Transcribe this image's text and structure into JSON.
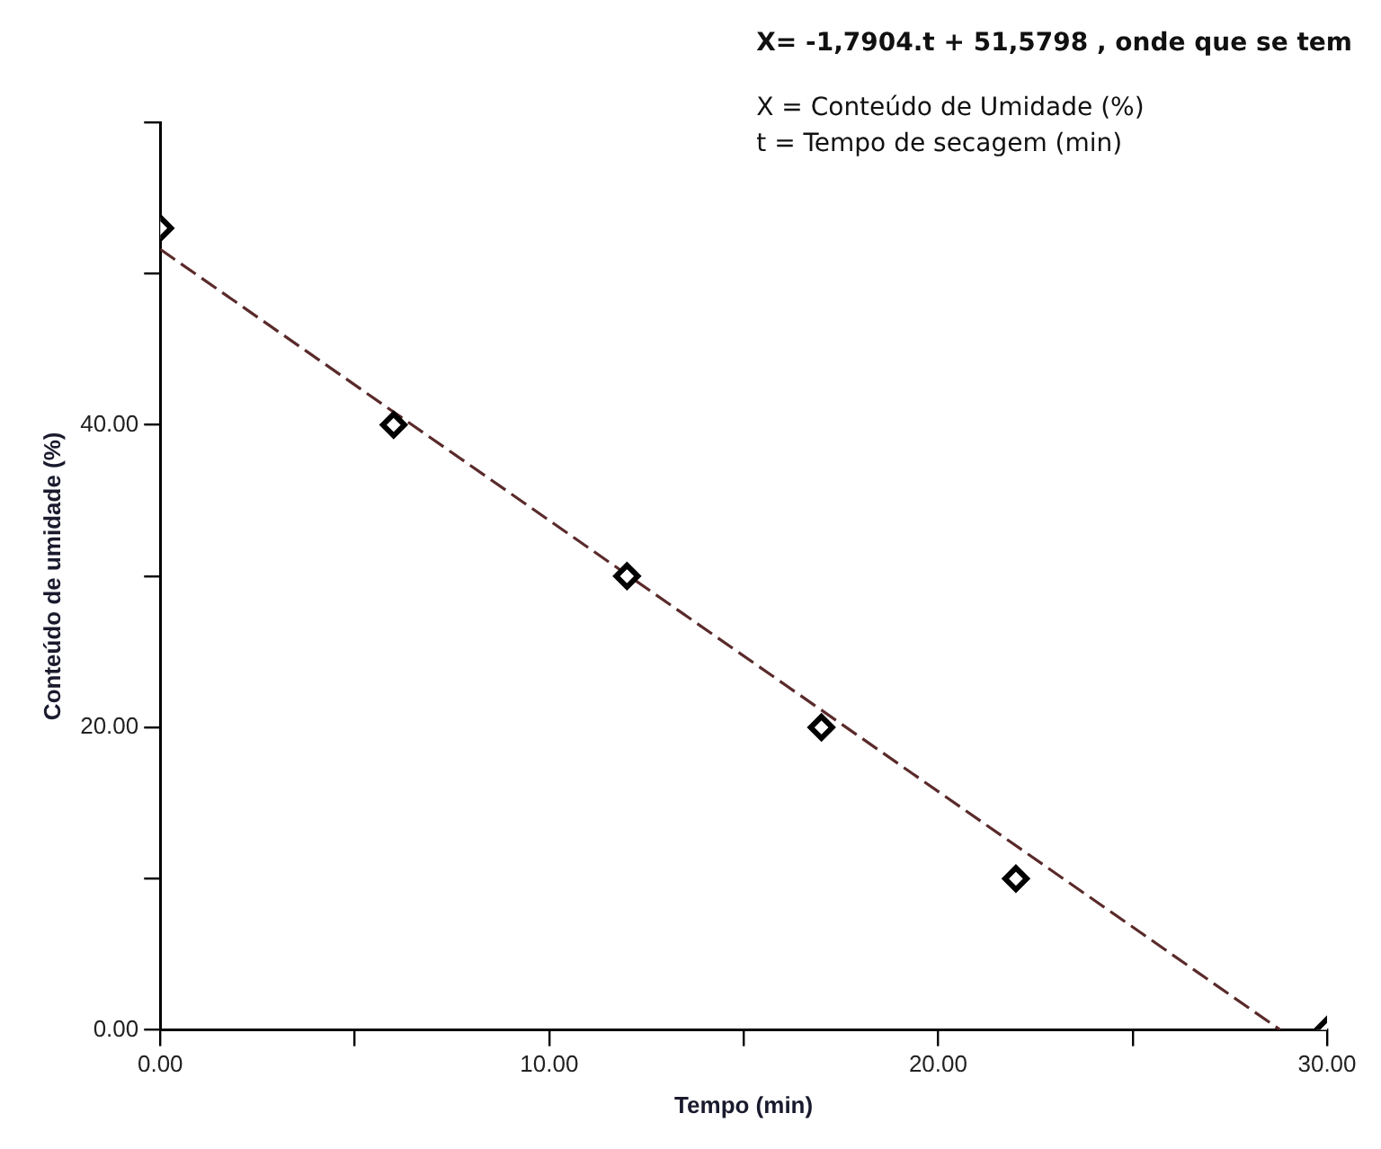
{
  "chart_data": {
    "type": "scatter",
    "xlabel": "Tempo (min)",
    "ylabel": "Conteúdo de umidade (%)",
    "annotations": [
      "X= -1,7904.t + 51,5798 , onde que se tem",
      "X = Conteúdo de Umidade (%)",
      "t = Tempo de secagem (min)"
    ],
    "x": [
      0,
      6,
      12,
      17,
      22,
      30
    ],
    "values": [
      53,
      40,
      30,
      20,
      10,
      0
    ],
    "color": "#000000",
    "marker": "diamond",
    "series": [
      {
        "type": "line",
        "x": [
          0,
          28.8
        ],
        "values": [
          51.6,
          0
        ],
        "color": "#5a2a2a",
        "line_style": "dashed",
        "marker": "none"
      }
    ],
    "xlim": [
      0,
      30
    ],
    "xticks": [
      {
        "value": 0,
        "label": "0.00"
      },
      {
        "value": 5,
        "label": null
      },
      {
        "value": 10,
        "label": "10.00"
      },
      {
        "value": 15,
        "label": null
      },
      {
        "value": 20,
        "label": "20.00"
      },
      {
        "value": 25,
        "label": null
      },
      {
        "value": 30,
        "label": "30.00"
      }
    ],
    "ylim": [
      0,
      60
    ],
    "yticks": [
      {
        "value": 0,
        "label": "0.00"
      },
      {
        "value": 10,
        "label": null
      },
      {
        "value": 20,
        "label": "20.00"
      },
      {
        "value": 30,
        "label": null
      },
      {
        "value": 40,
        "label": "40.00"
      },
      {
        "value": 50,
        "label": null
      },
      {
        "value": 60,
        "label": null
      }
    ],
    "grid": false,
    "legend": false
  }
}
